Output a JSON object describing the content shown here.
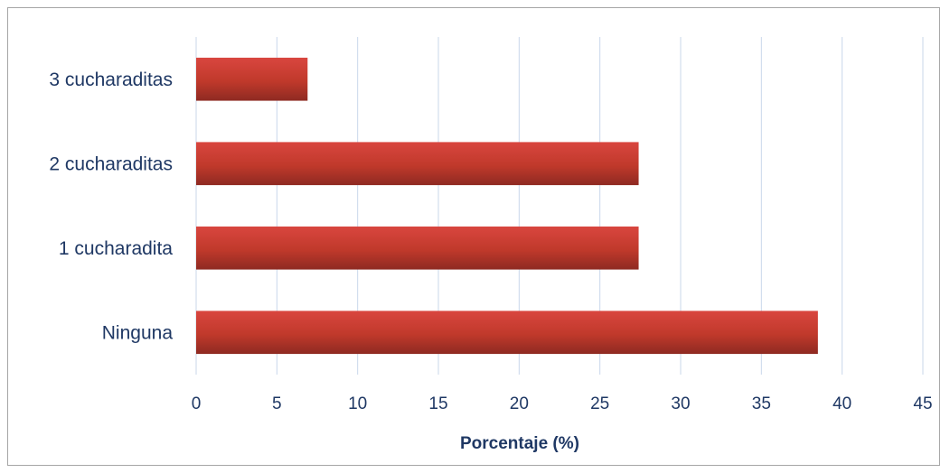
{
  "chart_data": {
    "type": "bar",
    "orientation": "horizontal",
    "categories": [
      "3 cucharaditas",
      "2 cucharaditas",
      "1 cucharadita",
      "Ninguna"
    ],
    "values": [
      6.9,
      27.4,
      27.4,
      38.5
    ],
    "xlabel": "Porcentaje (%)",
    "ylabel": "",
    "xlim": [
      0,
      45
    ],
    "xticks": [
      0,
      5,
      10,
      15,
      20,
      25,
      30,
      35,
      40,
      45
    ],
    "grid": true,
    "bar_color": "#c0392b"
  }
}
